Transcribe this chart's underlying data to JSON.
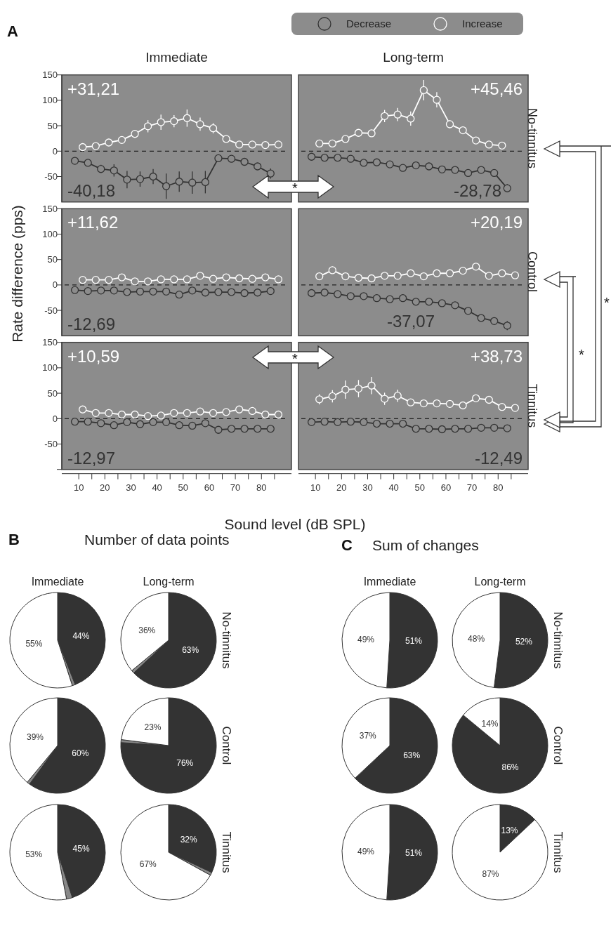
{
  "chart_data": [
    {
      "type": "line",
      "title": "Immediate",
      "annotations": [
        "A",
        "+31,21",
        "-40,18",
        "*"
      ],
      "xlim": [
        3.5,
        91.5
      ],
      "ylim": [
        -100,
        150
      ],
      "yticks": [
        -50,
        0,
        50,
        100,
        150
      ],
      "tick_labels": "y",
      "marker": "circle",
      "legend": "top right",
      "ref_lines": [
        {
          "axis": "y",
          "value": 0,
          "color": "#222222",
          "line_style": "dashed"
        }
      ],
      "series": [
        {
          "name": "Decrease",
          "color": "#333333",
          "x": [
            8.5,
            13.5,
            18.5,
            23.5,
            28.5,
            33.5,
            38.5,
            43.5,
            48.5,
            53.5,
            58.5,
            63.5,
            68.5,
            73.5,
            78.5,
            83.5
          ],
          "values": [
            -19,
            -23,
            -35,
            -38,
            -56,
            -55,
            -50,
            -69,
            -60,
            -62,
            -61,
            -14,
            -15,
            -21,
            -30,
            -44
          ],
          "errors": [
            4,
            5,
            8,
            12,
            17,
            15,
            15,
            25,
            20,
            22,
            22,
            5,
            5,
            5,
            7,
            10
          ]
        },
        {
          "name": "Increase",
          "color": "#ffffff",
          "x": [
            11.5,
            16.5,
            21.5,
            26.5,
            31.5,
            36.5,
            41.5,
            46.5,
            51.5,
            56.5,
            61.5,
            66.5,
            71.5,
            76.5,
            81.5,
            86.5
          ],
          "values": [
            8,
            10,
            17,
            22,
            34,
            49,
            57,
            59,
            65,
            53,
            45,
            24,
            13,
            13,
            12,
            13
          ],
          "errors": [
            3,
            3,
            3,
            4,
            8,
            12,
            15,
            12,
            17,
            13,
            10,
            5,
            3,
            3,
            3,
            4
          ]
        }
      ]
    },
    {
      "type": "line",
      "title": "Long-term",
      "annotations": [
        "+45,46",
        "-28,78",
        "No-tinnitus"
      ],
      "xlim": [
        3.5,
        91.5
      ],
      "ylim": [
        -100,
        150
      ],
      "tick_labels": false,
      "marker": "circle",
      "ref_lines": [
        {
          "axis": "y",
          "value": 0,
          "color": "#222222",
          "line_style": "dashed"
        }
      ],
      "series": [
        {
          "color": "#333333",
          "x": [
            8.5,
            13.5,
            18.5,
            23.5,
            28.5,
            33.5,
            38.5,
            43.5,
            48.5,
            53.5,
            58.5,
            63.5,
            68.5,
            73.5,
            78.5,
            83.5
          ],
          "values": [
            -11,
            -13,
            -13,
            -15,
            -23,
            -22,
            -26,
            -33,
            -28,
            -30,
            -36,
            -37,
            -43,
            -37,
            -43,
            -73
          ],
          "errors": [
            3,
            3,
            3,
            3,
            3,
            3,
            3,
            4,
            4,
            4,
            4,
            4,
            5,
            5,
            5,
            8
          ]
        },
        {
          "color": "#ffffff",
          "x": [
            11.5,
            16.5,
            21.5,
            26.5,
            31.5,
            36.5,
            41.5,
            46.5,
            51.5,
            56.5,
            61.5,
            66.5,
            71.5,
            76.5,
            81.5
          ],
          "values": [
            15,
            15,
            24,
            36,
            35,
            69,
            72,
            64,
            120,
            101,
            53,
            41,
            21,
            13,
            11
          ],
          "errors": [
            3,
            3,
            4,
            6,
            6,
            12,
            13,
            14,
            20,
            15,
            8,
            6,
            4,
            3,
            3
          ]
        }
      ]
    },
    {
      "type": "line",
      "ylabel": "Rate difference (pps)",
      "annotations": [
        "+11,62",
        "-12,69"
      ],
      "xlim": [
        3.5,
        91.5
      ],
      "ylim": [
        -100,
        150
      ],
      "yticks": [
        -50,
        0,
        50,
        100,
        150
      ],
      "tick_labels": "y",
      "marker": "circle",
      "ref_lines": [
        {
          "axis": "y",
          "value": 0,
          "color": "#222222",
          "line_style": "dashed"
        }
      ],
      "series": [
        {
          "color": "#333333",
          "x": [
            8.5,
            13.5,
            18.5,
            23.5,
            28.5,
            33.5,
            38.5,
            43.5,
            48.5,
            53.5,
            58.5,
            63.5,
            68.5,
            73.5,
            78.5,
            83.5
          ],
          "values": [
            -10,
            -12,
            -11,
            -11,
            -14,
            -13,
            -13,
            -13,
            -19,
            -11,
            -15,
            -14,
            -14,
            -16,
            -15,
            -12
          ],
          "errors": [
            2,
            3,
            3,
            3,
            3,
            3,
            3,
            3,
            4,
            3,
            3,
            3,
            3,
            3,
            3,
            3
          ]
        },
        {
          "color": "#ffffff",
          "x": [
            11.5,
            16.5,
            21.5,
            26.5,
            31.5,
            36.5,
            41.5,
            46.5,
            51.5,
            56.5,
            61.5,
            66.5,
            71.5,
            76.5,
            81.5,
            86.5
          ],
          "values": [
            10,
            10,
            10,
            15,
            7,
            7,
            11,
            11,
            11,
            18,
            12,
            15,
            13,
            12,
            15,
            11
          ],
          "errors": [
            2,
            2,
            2,
            4,
            2,
            2,
            3,
            3,
            3,
            4,
            3,
            3,
            3,
            3,
            3,
            3
          ]
        }
      ]
    },
    {
      "type": "line",
      "annotations": [
        "+20,19",
        "-37,07",
        "Control"
      ],
      "xlim": [
        3.5,
        91.5
      ],
      "ylim": [
        -100,
        150
      ],
      "tick_labels": false,
      "marker": "circle",
      "ref_lines": [
        {
          "axis": "y",
          "value": 0,
          "color": "#222222",
          "line_style": "dashed"
        }
      ],
      "series": [
        {
          "color": "#333333",
          "x": [
            8.5,
            13.5,
            18.5,
            23.5,
            28.5,
            33.5,
            38.5,
            43.5,
            48.5,
            53.5,
            58.5,
            63.5,
            68.5,
            73.5,
            78.5,
            83.5
          ],
          "values": [
            -16,
            -15,
            -18,
            -22,
            -22,
            -26,
            -28,
            -26,
            -33,
            -33,
            -36,
            -40,
            -51,
            -65,
            -71,
            -80
          ],
          "errors": [
            3,
            3,
            3,
            3,
            3,
            3,
            3,
            3,
            3,
            4,
            4,
            4,
            5,
            7,
            7,
            9
          ]
        },
        {
          "color": "#ffffff",
          "x": [
            11.5,
            16.5,
            21.5,
            26.5,
            31.5,
            36.5,
            41.5,
            46.5,
            51.5,
            56.5,
            61.5,
            66.5,
            71.5,
            76.5,
            81.5,
            86.5
          ],
          "values": [
            17,
            29,
            17,
            14,
            13,
            18,
            18,
            23,
            17,
            23,
            23,
            28,
            36,
            18,
            23,
            19
          ],
          "errors": [
            3,
            7,
            3,
            3,
            3,
            3,
            3,
            6,
            3,
            3,
            3,
            3,
            6,
            3,
            3,
            3
          ]
        }
      ]
    },
    {
      "type": "line",
      "xlabel": "Sound level (dB SPL)",
      "annotations": [
        "+10,59",
        "-12,97",
        "*"
      ],
      "xlim": [
        3.5,
        91.5
      ],
      "ylim": [
        -100,
        150
      ],
      "yticks": [
        {
          "value": -100,
          "label": null
        },
        -50,
        0,
        50,
        100,
        150
      ],
      "xticks": [
        10,
        {
          "value": 15,
          "label": null
        },
        20,
        {
          "value": 25,
          "label": null
        },
        30,
        {
          "value": 35,
          "label": null
        },
        40,
        {
          "value": 45,
          "label": null
        },
        50,
        {
          "value": 55,
          "label": null
        },
        60,
        {
          "value": 65,
          "label": null
        },
        70,
        {
          "value": 75,
          "label": null
        },
        80,
        {
          "value": 85,
          "label": null
        }
      ],
      "marker": "circle",
      "ref_lines": [
        {
          "axis": "y",
          "value": 0,
          "color": "#222222",
          "line_style": "dashed"
        }
      ],
      "series": [
        {
          "color": "#333333",
          "x": [
            8.5,
            13.5,
            18.5,
            23.5,
            28.5,
            33.5,
            38.5,
            43.5,
            48.5,
            53.5,
            58.5,
            63.5,
            68.5,
            73.5,
            78.5,
            83.5
          ],
          "values": [
            -6,
            -6,
            -9,
            -13,
            -7,
            -11,
            -7,
            -7,
            -13,
            -14,
            -9,
            -22,
            -20,
            -20,
            -20,
            -20
          ],
          "errors": [
            3,
            3,
            3,
            4,
            3,
            3,
            3,
            3,
            3,
            3,
            3,
            4,
            4,
            4,
            4,
            5
          ]
        },
        {
          "color": "#ffffff",
          "x": [
            11.5,
            16.5,
            21.5,
            26.5,
            31.5,
            36.5,
            41.5,
            46.5,
            51.5,
            56.5,
            61.5,
            66.5,
            71.5,
            76.5,
            81.5,
            86.5
          ],
          "values": [
            18,
            11,
            11,
            8,
            8,
            5,
            6,
            11,
            11,
            14,
            11,
            13,
            18,
            15,
            8,
            8
          ],
          "errors": [
            4,
            3,
            3,
            3,
            3,
            3,
            3,
            3,
            3,
            3,
            3,
            3,
            3,
            3,
            3,
            3
          ]
        }
      ]
    },
    {
      "type": "line",
      "annotations": [
        "+38,73",
        "-12,49",
        "Tinnitus",
        "*",
        "*"
      ],
      "xlim": [
        3.5,
        91.5
      ],
      "ylim": [
        -100,
        150
      ],
      "xticks": [
        10,
        {
          "value": 15,
          "label": null
        },
        20,
        {
          "value": 25,
          "label": null
        },
        30,
        {
          "value": 35,
          "label": null
        },
        40,
        {
          "value": 45,
          "label": null
        },
        50,
        {
          "value": 55,
          "label": null
        },
        60,
        {
          "value": 65,
          "label": null
        },
        70,
        {
          "value": 75,
          "label": null
        },
        80,
        {
          "value": 85,
          "label": null
        }
      ],
      "tick_labels": "x",
      "marker": "circle",
      "ref_lines": [
        {
          "axis": "y",
          "value": 0,
          "color": "#222222",
          "line_style": "dashed"
        }
      ],
      "series": [
        {
          "color": "#333333",
          "x": [
            8.5,
            13.5,
            18.5,
            23.5,
            28.5,
            33.5,
            38.5,
            43.5,
            48.5,
            53.5,
            58.5,
            63.5,
            68.5,
            73.5,
            78.5,
            83.5
          ],
          "values": [
            -7,
            -6,
            -7,
            -6,
            -7,
            -10,
            -10,
            -10,
            -20,
            -20,
            -21,
            -20,
            -20,
            -18,
            -18,
            -19
          ],
          "errors": [
            3,
            3,
            3,
            3,
            3,
            3,
            3,
            3,
            3,
            3,
            3,
            3,
            3,
            3,
            4,
            4
          ]
        },
        {
          "color": "#ffffff",
          "x": [
            11.5,
            16.5,
            21.5,
            26.5,
            31.5,
            36.5,
            41.5,
            46.5,
            51.5,
            56.5,
            61.5,
            66.5,
            71.5,
            76.5,
            81.5,
            86.5
          ],
          "values": [
            38,
            44,
            57,
            59,
            65,
            39,
            45,
            32,
            30,
            30,
            29,
            26,
            40,
            37,
            23,
            21
          ],
          "errors": [
            10,
            12,
            18,
            17,
            17,
            12,
            12,
            6,
            4,
            4,
            4,
            4,
            5,
            5,
            4,
            4
          ]
        }
      ]
    },
    {
      "type": "pie",
      "title": "Immediate",
      "annotations": [
        "B",
        "Number of data points"
      ],
      "categories": [
        null,
        null,
        null
      ],
      "values": [
        44,
        1,
        55
      ],
      "colors": [
        "#333333",
        "#888888",
        "#ffffff"
      ],
      "value_labels": [
        "44%",
        null,
        "55%"
      ]
    },
    {
      "type": "pie",
      "title": "Long-term",
      "annotations": [
        "No-tinnitus"
      ],
      "categories": [
        null,
        null,
        null
      ],
      "values": [
        63,
        1,
        36
      ],
      "colors": [
        "#333333",
        "#888888",
        "#ffffff"
      ],
      "value_labels": [
        "63%",
        null,
        "36%"
      ]
    },
    {
      "type": "pie",
      "categories": [
        null,
        null,
        null
      ],
      "values": [
        60,
        1,
        39
      ],
      "colors": [
        "#333333",
        "#888888",
        "#ffffff"
      ],
      "value_labels": [
        "60%",
        null,
        "39%"
      ]
    },
    {
      "type": "pie",
      "annotations": [
        "Control"
      ],
      "categories": [
        null,
        null,
        null
      ],
      "values": [
        76,
        1,
        23
      ],
      "colors": [
        "#333333",
        "#888888",
        "#ffffff"
      ],
      "value_labels": [
        "76%",
        null,
        "23%"
      ]
    },
    {
      "type": "pie",
      "categories": [
        null,
        null,
        null
      ],
      "values": [
        45,
        2,
        53
      ],
      "colors": [
        "#333333",
        "#888888",
        "#ffffff"
      ],
      "value_labels": [
        "45%",
        null,
        "53%"
      ]
    },
    {
      "type": "pie",
      "annotations": [
        "Tinnitus"
      ],
      "categories": [
        null,
        null,
        null
      ],
      "values": [
        32,
        1,
        67
      ],
      "colors": [
        "#333333",
        "#888888",
        "#ffffff"
      ],
      "value_labels": [
        "32%",
        null,
        "67%"
      ]
    },
    {
      "type": "pie",
      "title": "Immediate",
      "annotations": [
        "C",
        "Sum of changes"
      ],
      "categories": [
        null,
        null
      ],
      "values": [
        51,
        49
      ],
      "colors": [
        "#333333",
        "#ffffff"
      ],
      "value_labels": [
        "51%",
        "49%"
      ]
    },
    {
      "type": "pie",
      "title": "Long-term",
      "annotations": [
        "No-tinnitus"
      ],
      "categories": [
        null,
        null
      ],
      "values": [
        52,
        48
      ],
      "colors": [
        "#333333",
        "#ffffff"
      ],
      "value_labels": [
        "52%",
        "48%"
      ]
    },
    {
      "type": "pie",
      "categories": [
        null,
        null
      ],
      "values": [
        63,
        37
      ],
      "colors": [
        "#333333",
        "#ffffff"
      ],
      "value_labels": [
        "63%",
        "37%"
      ]
    },
    {
      "type": "pie",
      "annotations": [
        "Control"
      ],
      "categories": [
        null,
        null
      ],
      "values": [
        86,
        14
      ],
      "colors": [
        "#333333",
        "#ffffff"
      ],
      "value_labels": [
        "86%",
        "14%"
      ]
    },
    {
      "type": "pie",
      "categories": [
        null,
        null
      ],
      "values": [
        51,
        49
      ],
      "colors": [
        "#333333",
        "#ffffff"
      ],
      "value_labels": [
        "51%",
        "49%"
      ]
    },
    {
      "type": "pie",
      "annotations": [
        "Tinnitus"
      ],
      "categories": [
        null,
        null
      ],
      "values": [
        13,
        87
      ],
      "colors": [
        "#333333",
        "#ffffff"
      ],
      "value_labels": [
        "13%",
        "87%"
      ]
    }
  ]
}
